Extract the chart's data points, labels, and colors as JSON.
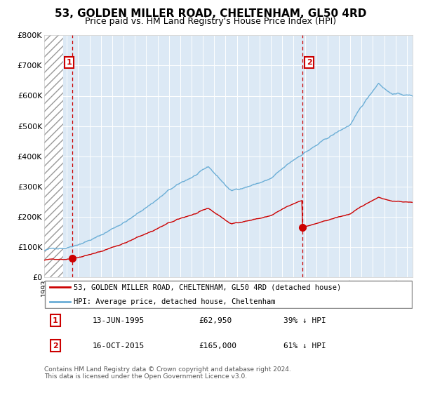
{
  "title": "53, GOLDEN MILLER ROAD, CHELTENHAM, GL50 4RD",
  "subtitle": "Price paid vs. HM Land Registry's House Price Index (HPI)",
  "bg_color": "#dce9f5",
  "hpi_color": "#6baed6",
  "sale_color": "#cc0000",
  "ylim": [
    0,
    800000
  ],
  "yticks": [
    0,
    100000,
    200000,
    300000,
    400000,
    500000,
    600000,
    700000,
    800000
  ],
  "ytick_labels": [
    "£0",
    "£100K",
    "£200K",
    "£300K",
    "£400K",
    "£500K",
    "£600K",
    "£700K",
    "£800K"
  ],
  "sale1_year": 1995.45,
  "sale1_price": 62950,
  "sale2_year": 2015.79,
  "sale2_price": 165000,
  "xmin": 1993,
  "xmax": 2025.5,
  "legend_sale_label": "53, GOLDEN MILLER ROAD, CHELTENHAM, GL50 4RD (detached house)",
  "legend_hpi_label": "HPI: Average price, detached house, Cheltenham",
  "annotation1_date": "13-JUN-1995",
  "annotation1_price": "£62,950",
  "annotation1_pct": "39% ↓ HPI",
  "annotation2_date": "16-OCT-2015",
  "annotation2_price": "£165,000",
  "annotation2_pct": "61% ↓ HPI",
  "footer": "Contains HM Land Registry data © Crown copyright and database right 2024.\nThis data is licensed under the Open Government Licence v3.0."
}
